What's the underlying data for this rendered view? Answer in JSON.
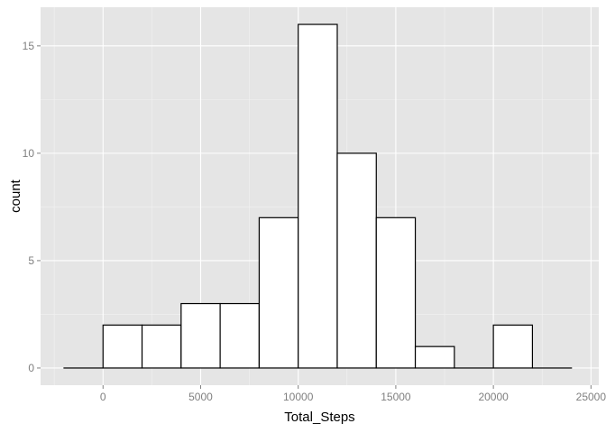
{
  "chart_data": {
    "type": "bar",
    "xlabel": "Total_Steps",
    "ylabel": "count",
    "xlim": [
      -3200,
      25400
    ],
    "ylim": [
      -0.8,
      16.8
    ],
    "x_ticks": [
      0,
      5000,
      10000,
      15000,
      20000,
      25000
    ],
    "x_tick_labels": [
      "0",
      "5000",
      "10000",
      "15000",
      "20000",
      "25000"
    ],
    "y_ticks": [
      0,
      5,
      10,
      15
    ],
    "y_tick_labels": [
      "0",
      "5",
      "10",
      "15"
    ],
    "grid": true,
    "bins": [
      {
        "x0": -2000,
        "x1": 0,
        "count": 0
      },
      {
        "x0": 0,
        "x1": 2000,
        "count": 2
      },
      {
        "x0": 2000,
        "x1": 4000,
        "count": 2
      },
      {
        "x0": 4000,
        "x1": 6000,
        "count": 3
      },
      {
        "x0": 6000,
        "x1": 8000,
        "count": 3
      },
      {
        "x0": 8000,
        "x1": 10000,
        "count": 7
      },
      {
        "x0": 10000,
        "x1": 12000,
        "count": 16
      },
      {
        "x0": 12000,
        "x1": 14000,
        "count": 10
      },
      {
        "x0": 14000,
        "x1": 16000,
        "count": 7
      },
      {
        "x0": 16000,
        "x1": 18000,
        "count": 1
      },
      {
        "x0": 18000,
        "x1": 20000,
        "count": 0
      },
      {
        "x0": 20000,
        "x1": 22000,
        "count": 2
      },
      {
        "x0": 22000,
        "x1": 24000,
        "count": 0
      }
    ],
    "colors": {
      "panel": "#e5e5e5",
      "grid_major": "#ffffff",
      "grid_minor": "#f2f2f2",
      "bar_fill": "#ffffff",
      "bar_stroke": "#000000",
      "tick_text": "#7f7f7f",
      "tick_mark": "#7f7f7f"
    }
  }
}
